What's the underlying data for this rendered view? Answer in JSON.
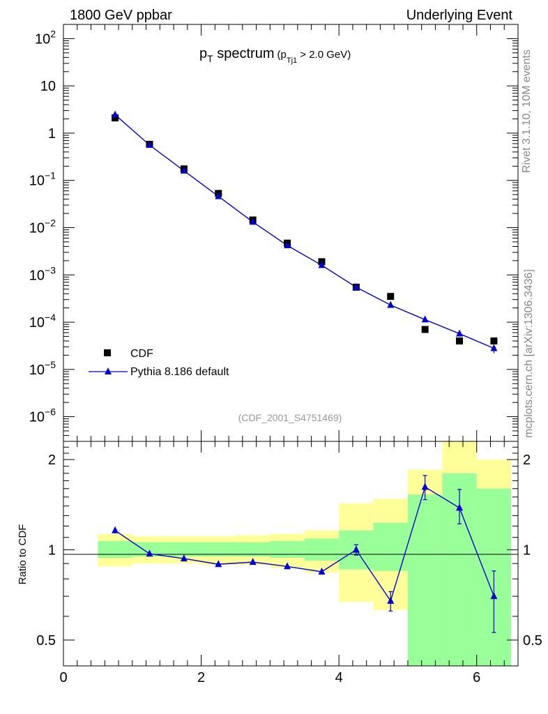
{
  "header": {
    "left": "1800 GeV ppbar",
    "right": "Underlying Event"
  },
  "side": {
    "rivet": "Rivet 3.1.10,  10M events",
    "mcplots": "mcplots.cern.ch [arXiv:1306.3436]"
  },
  "title": {
    "main": "p",
    "main_sub": "T",
    "main_rest": " spectrum",
    "cut_open": "(p",
    "cut_sub": "Tj1",
    "cut_rest": " > 2.0 GeV)"
  },
  "analysis_id": "(CDF_2001_S4751469)",
  "legend": {
    "data_label": "CDF",
    "mc_label": "Pythia 8.186 default"
  },
  "ratio_ylabel": "Ratio to CDF",
  "colors": {
    "data": "#000000",
    "mc": "#0000cc",
    "band_outer": "#ffff99",
    "band_inner": "#99ff99"
  },
  "chart_data": [
    {
      "type": "scatter",
      "role": "main",
      "yscale": "log",
      "ylim": [
        3e-07,
        200
      ],
      "xlim": [
        0,
        6.6
      ],
      "y_ticks": [
        {
          "value": 100,
          "base": "10",
          "exp": "2"
        },
        {
          "value": 10,
          "base": "10",
          "exp": ""
        },
        {
          "value": 1,
          "base": "1",
          "exp": ""
        },
        {
          "value": 0.1,
          "base": "10",
          "exp": "−1"
        },
        {
          "value": 0.01,
          "base": "10",
          "exp": "−2"
        },
        {
          "value": 0.001,
          "base": "10",
          "exp": "−3"
        },
        {
          "value": 0.0001,
          "base": "10",
          "exp": "−4"
        },
        {
          "value": 1e-05,
          "base": "10",
          "exp": "−5"
        },
        {
          "value": 1e-06,
          "base": "10",
          "exp": "−6"
        }
      ],
      "series": [
        {
          "name": "CDF",
          "marker": "square",
          "x": [
            0.75,
            1.25,
            1.75,
            2.25,
            2.75,
            3.25,
            3.75,
            4.25,
            4.75,
            5.25,
            5.75,
            6.25
          ],
          "y": [
            2.1,
            0.58,
            0.175,
            0.053,
            0.0145,
            0.0047,
            0.0019,
            0.00055,
            0.00035,
            7e-05,
            4e-05,
            4e-05
          ]
        },
        {
          "name": "Pythia 8.186 default",
          "marker": "triangle",
          "x": [
            0.75,
            1.25,
            1.75,
            2.25,
            2.75,
            3.25,
            3.75,
            4.25,
            4.75,
            5.25,
            5.75,
            6.25
          ],
          "y": [
            2.45,
            0.56,
            0.16,
            0.046,
            0.0132,
            0.0042,
            0.0016,
            0.00055,
            0.00023,
            0.000113,
            5.7e-05,
            2.8e-05
          ]
        }
      ]
    },
    {
      "type": "line",
      "role": "ratio",
      "ylabel": "Ratio to CDF",
      "yscale": "log",
      "ylim": [
        0.41,
        2.3
      ],
      "xlim": [
        0,
        6.6
      ],
      "x_ticks": [
        "0",
        "2",
        "4",
        "6"
      ],
      "y_ticks": [
        {
          "value": 2,
          "label": "2"
        },
        {
          "value": 1,
          "label": "1"
        },
        {
          "value": 0.5,
          "label": "0.5"
        }
      ],
      "bins": [
        {
          "lo": 0.5,
          "hi": 1.0,
          "in_lo": 0.94,
          "in_hi": 1.07,
          "out_lo": 0.88,
          "out_hi": 1.13
        },
        {
          "lo": 1.0,
          "hi": 1.5,
          "in_lo": 0.95,
          "in_hi": 1.06,
          "out_lo": 0.9,
          "out_hi": 1.11
        },
        {
          "lo": 1.5,
          "hi": 2.0,
          "in_lo": 0.95,
          "in_hi": 1.06,
          "out_lo": 0.9,
          "out_hi": 1.11
        },
        {
          "lo": 2.0,
          "hi": 2.5,
          "in_lo": 0.95,
          "in_hi": 1.06,
          "out_lo": 0.89,
          "out_hi": 1.11
        },
        {
          "lo": 2.5,
          "hi": 3.0,
          "in_lo": 0.95,
          "in_hi": 1.06,
          "out_lo": 0.89,
          "out_hi": 1.12
        },
        {
          "lo": 3.0,
          "hi": 3.5,
          "in_lo": 0.94,
          "in_hi": 1.07,
          "out_lo": 0.87,
          "out_hi": 1.13
        },
        {
          "lo": 3.5,
          "hi": 4.0,
          "in_lo": 0.92,
          "in_hi": 1.09,
          "out_lo": 0.84,
          "out_hi": 1.16
        },
        {
          "lo": 4.0,
          "hi": 4.5,
          "in_lo": 0.86,
          "in_hi": 1.16,
          "out_lo": 0.67,
          "out_hi": 1.43
        },
        {
          "lo": 4.5,
          "hi": 5.0,
          "in_lo": 0.85,
          "in_hi": 1.23,
          "out_lo": 0.63,
          "out_hi": 1.48
        },
        {
          "lo": 5.0,
          "hi": 5.5,
          "in_lo": 0.41,
          "in_hi": 1.53,
          "out_lo": 0.41,
          "out_hi": 1.85
        },
        {
          "lo": 5.5,
          "hi": 6.0,
          "in_lo": 0.41,
          "in_hi": 1.8,
          "out_lo": 0.41,
          "out_hi": 2.3
        },
        {
          "lo": 6.0,
          "hi": 6.5,
          "in_lo": 0.41,
          "in_hi": 1.6,
          "out_lo": 0.5,
          "out_hi": 2.0
        }
      ],
      "mc": {
        "x": [
          0.75,
          1.25,
          1.75,
          2.25,
          2.75,
          3.25,
          3.75,
          4.25,
          4.75,
          5.25,
          5.75,
          6.25
        ],
        "y": [
          1.16,
          0.97,
          0.935,
          0.895,
          0.91,
          0.88,
          0.845,
          1.0,
          0.675,
          1.62,
          1.38,
          0.7
        ],
        "err_lo": [
          0.01,
          0.005,
          0.005,
          0.005,
          0.006,
          0.008,
          0.012,
          0.04,
          0.05,
          0.15,
          0.16,
          0.17
        ],
        "err_hi": [
          0.01,
          0.005,
          0.005,
          0.005,
          0.006,
          0.008,
          0.012,
          0.04,
          0.05,
          0.15,
          0.21,
          0.15
        ]
      }
    }
  ]
}
